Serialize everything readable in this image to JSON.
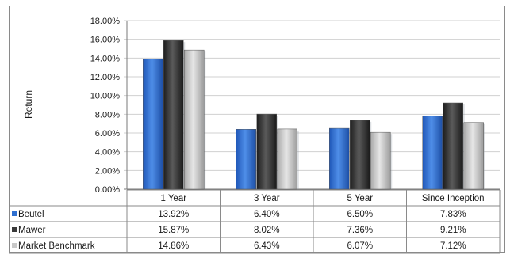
{
  "chart_data": {
    "type": "bar",
    "title": "",
    "ylabel": "Return",
    "xlabel": "",
    "ylim": [
      0,
      18
    ],
    "y_ticks": [
      "0.00%",
      "2.00%",
      "4.00%",
      "6.00%",
      "8.00%",
      "10.00%",
      "12.00%",
      "14.00%",
      "16.00%",
      "18.00%"
    ],
    "categories": [
      "1 Year",
      "3 Year",
      "5 Year",
      "Since Inception"
    ],
    "series": [
      {
        "name": "Beutel",
        "values": [
          13.92,
          6.4,
          6.5,
          7.83
        ],
        "labels": [
          "13.92%",
          "6.40%",
          "6.50%",
          "7.83%"
        ],
        "color": "#2e6fd0"
      },
      {
        "name": "Mawer",
        "values": [
          15.87,
          8.02,
          7.36,
          9.21
        ],
        "labels": [
          "15.87%",
          "8.02%",
          "7.36%",
          "9.21%"
        ],
        "color": "#3a3a3a"
      },
      {
        "name": "Market Benchmark",
        "values": [
          14.86,
          6.43,
          6.07,
          7.12
        ],
        "labels": [
          "14.86%",
          "6.43%",
          "6.07%",
          "7.12%"
        ],
        "color": "#c8c8c8"
      }
    ],
    "grid": true,
    "legend": "data-table"
  }
}
